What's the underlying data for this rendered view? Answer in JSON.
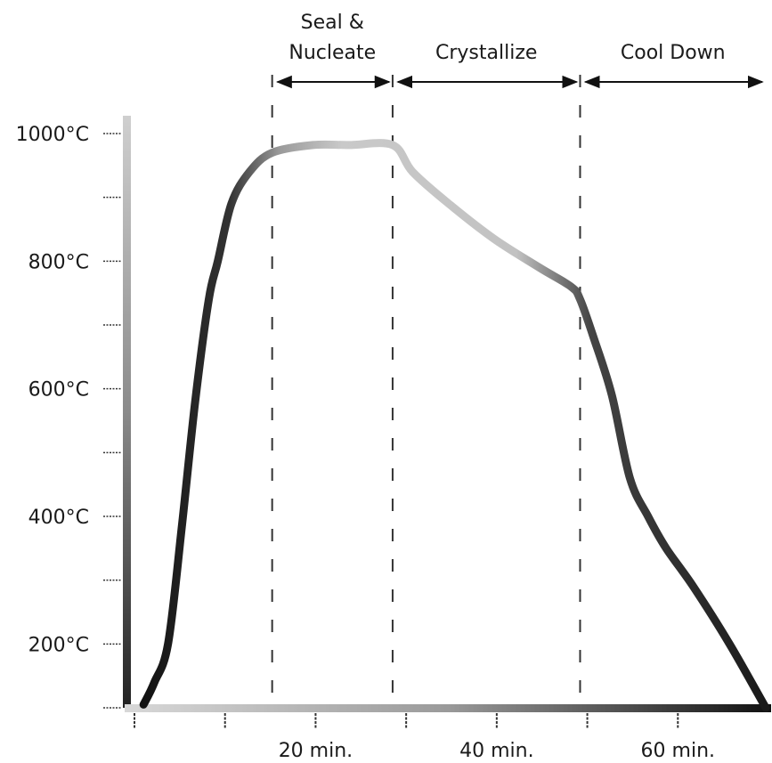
{
  "chart_data": {
    "type": "line",
    "title": "",
    "xlabel": "",
    "ylabel": "",
    "xlim": [
      0,
      70
    ],
    "ylim": [
      100,
      1000
    ],
    "x_ticks": [
      0,
      10,
      20,
      30,
      40,
      50,
      60
    ],
    "x_tick_labels": [
      {
        "x": 20,
        "label": "20 min."
      },
      {
        "x": 40,
        "label": "40 min."
      },
      {
        "x": 60,
        "label": "60 min."
      }
    ],
    "y_ticks": [
      1000,
      900,
      800,
      700,
      600,
      500,
      400,
      300,
      200,
      100
    ],
    "y_tick_labels": [
      {
        "y": 1000,
        "label": "1000°C"
      },
      {
        "y": 800,
        "label": "800°C"
      },
      {
        "y": 600,
        "label": "600°C"
      },
      {
        "y": 400,
        "label": "400°C"
      },
      {
        "y": 200,
        "label": "200°C"
      }
    ],
    "phase_boundaries": [
      15.5,
      28.8,
      49.5
    ],
    "phases": [
      {
        "label_lines": [
          "Seal &",
          "Nucleate"
        ],
        "start": 15.5,
        "end": 28.8
      },
      {
        "label_lines": [
          "Crystallize"
        ],
        "start": 28.8,
        "end": 49.5
      },
      {
        "label_lines": [
          "Cool Down"
        ],
        "start": 49.5,
        "end": 70
      }
    ],
    "series": [
      {
        "x": [
          1.3,
          2.5,
          4.0,
          5.5,
          7.0,
          8.5,
          9.5,
          11.0,
          13.0,
          15.5,
          20.0,
          24.0,
          28.8,
          31.0,
          35.0,
          40.0,
          45.0,
          48.5,
          49.5,
          51.0,
          53.0,
          55.0,
          57.0,
          59.0,
          62.0,
          66.0,
          70.0
        ],
        "values": [
          105,
          140,
          200,
          380,
          580,
          740,
          800,
          890,
          940,
          970,
          982,
          982,
          982,
          940,
          890,
          835,
          790,
          760,
          740,
          680,
          590,
          460,
          400,
          350,
          290,
          200,
          100
        ]
      }
    ]
  }
}
